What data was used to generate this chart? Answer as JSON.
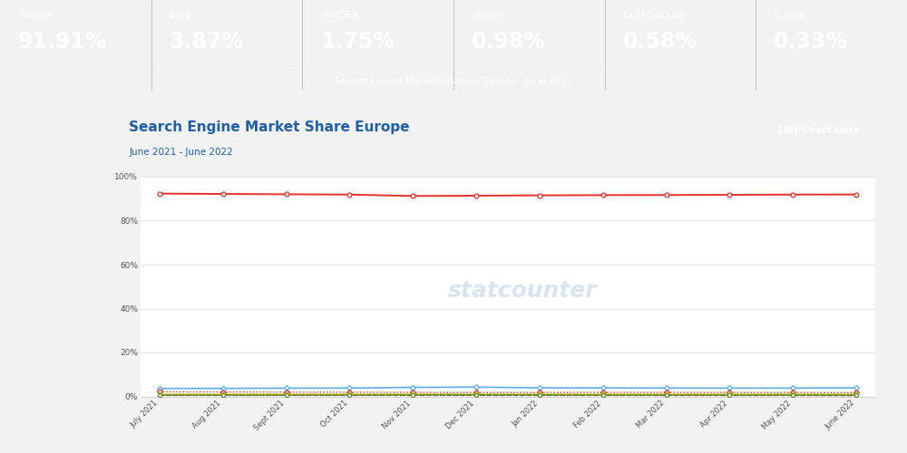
{
  "header_bg_color": "#0a2d6e",
  "header_stats": [
    {
      "label": "Google",
      "value": "91.91%"
    },
    {
      "label": "bing",
      "value": "3.87%"
    },
    {
      "label": "YANDEX",
      "value": "1.75%"
    },
    {
      "label": "Yahoo!",
      "value": "0.98%"
    },
    {
      "label": "DuckDuckGo",
      "value": "0.58%"
    },
    {
      "label": "Ecosia",
      "value": "0.33%"
    }
  ],
  "header_subtitle": "Search Engine Market Share in Europe - June 2022",
  "chart_title": "Search Engine Market Share Europe",
  "chart_subtitle": "June 2021 - June 2022",
  "outer_bg": "#f2f2f2",
  "x_labels": [
    "July 2021",
    "Aug 2021",
    "Sept 2021",
    "Oct 2021",
    "Nov 2021",
    "Dec 2021",
    "Jan 2022",
    "Feb 2022",
    "Mar 2022",
    "Apr 2022",
    "May 2022",
    "June 2022"
  ],
  "google": [
    92.3,
    92.15,
    92.0,
    91.85,
    91.2,
    91.35,
    91.5,
    91.6,
    91.65,
    91.75,
    91.85,
    91.91
  ],
  "bing": [
    3.6,
    3.65,
    3.72,
    3.78,
    4.1,
    4.22,
    3.9,
    3.85,
    3.8,
    3.75,
    3.78,
    3.87
  ],
  "yandex": [
    2.1,
    2.0,
    1.95,
    1.9,
    1.85,
    1.8,
    1.82,
    1.85,
    1.82,
    1.8,
    1.78,
    1.75
  ],
  "yahoo": [
    0.95,
    0.96,
    0.97,
    0.98,
    1.0,
    0.99,
    0.98,
    0.97,
    0.97,
    0.98,
    0.98,
    0.98
  ],
  "duckduckgo": [
    0.55,
    0.56,
    0.57,
    0.58,
    0.65,
    0.68,
    0.62,
    0.6,
    0.59,
    0.58,
    0.58,
    0.58
  ],
  "other": [
    0.45,
    0.44,
    0.46,
    0.44,
    0.45,
    0.43,
    0.43,
    0.43,
    0.42,
    0.41,
    0.42,
    0.33
  ],
  "google_color": "#e8302a",
  "bing_color": "#5aaeee",
  "yandex_color": "#cc3333",
  "yahoo_color": "#ccbb00",
  "duckduckgo_color": "#5b8a2c",
  "other_color": "#993333",
  "grid_color": "#dddddd",
  "yticks": [
    0,
    20,
    40,
    60,
    80,
    100
  ],
  "title_color": "#1e5fa8",
  "subtitle_color": "#1e5fa8",
  "btn_color": "#1e4d8c"
}
